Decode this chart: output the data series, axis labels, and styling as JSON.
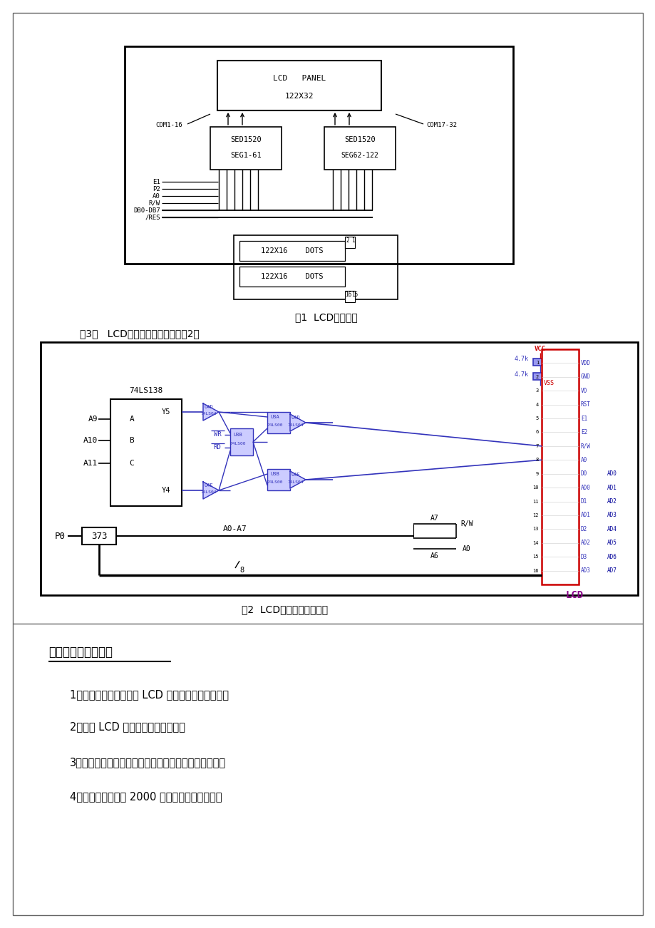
{
  "page_bg": "#ffffff",
  "title1": "图1  LCD显示电路",
  "title2": "图2  LCD与单片机的连接图",
  "section3_text": "（3）   LCD与单片机的连接（如图2）",
  "section4_title": "四、要求的设计成果",
  "item1": "1、根据控制要求，分析 LCD 显示系统的硬件结构；",
  "item2": "2、分析 LCD 引脚功能及地址分配；",
  "item3": "3、在单片机实验筱上按要求显示汉子并进行实时演示。",
  "item4": "4、提交字数不低于 2000 字的设计说明书一份。",
  "black": "#000000",
  "blue": "#3333bb",
  "dark_blue": "#000099",
  "red": "#cc0000",
  "magenta": "#880088"
}
